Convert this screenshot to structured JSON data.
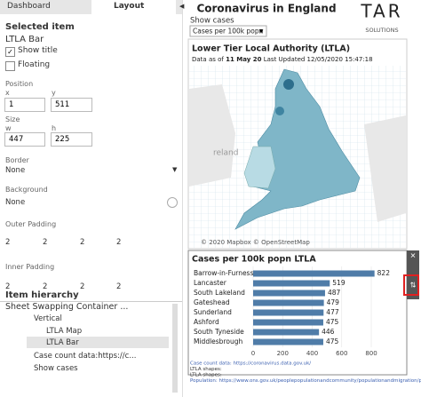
{
  "left_panel": {
    "tabs": [
      "Dashboard",
      "Layout"
    ],
    "selected_item_heading": "Selected item",
    "selected_item_name": "LTLA Bar",
    "show_title": "Show title",
    "floating": "Floating",
    "position": {
      "label": "Position",
      "x_label": "x",
      "y_label": "y",
      "x": 1,
      "y": 511
    },
    "size": {
      "label": "Size",
      "w_label": "w",
      "h_label": "h",
      "w": 447,
      "h": 225
    },
    "border": {
      "label": "Border",
      "value": "None"
    },
    "background": {
      "label": "Background",
      "value": "None"
    },
    "outer_padding": {
      "label": "Outer Padding",
      "values": [
        2,
        2,
        2,
        2
      ]
    },
    "inner_padding": {
      "label": "Inner Padding",
      "values": [
        2,
        2,
        2,
        2
      ]
    },
    "hierarchy": {
      "label": "Item hierarchy",
      "items": [
        "Sheet Swapping Container ...",
        "Vertical",
        "LTLA Map",
        "LTLA Bar",
        "Case count data:https://c...",
        "Show cases"
      ]
    }
  },
  "dashboard": {
    "title": "Coronavirus in England",
    "logo": "TAR",
    "logo_sub": "SOLUTIONS",
    "filter_label": "Show cases",
    "filter_value": "Cases per 100k popn",
    "map": {
      "title": "Lower Tier Local Authority (LTLA)",
      "subtitle_prefix": "Data as of",
      "subtitle_date": "11 May 20",
      "subtitle_suffix": "Last Updated 12/05/2020 15:47:18",
      "place_label": "reland",
      "attribution": "© 2020 Mapbox © OpenStreetMap"
    },
    "bar_chart": {
      "type": "bar",
      "title": "Cases per 100k popn LTLA",
      "categories": [
        "Barrow-in-Furness",
        "Lancaster",
        "South Lakeland",
        "Gateshead",
        "Sunderland",
        "Ashford",
        "South Tyneside",
        "Middlesbrough"
      ],
      "values": [
        822,
        519,
        487,
        479,
        477,
        475,
        446,
        475
      ],
      "color": "#4f7ca8",
      "xlim": [
        0,
        800
      ],
      "xticks": [
        0,
        200,
        400,
        600,
        800
      ]
    },
    "footer": [
      "Case count data: https://coronavirus.data.gov.uk/",
      "LTLA shapes:",
      "LTLA shapes:",
      "Population: https://www.ons.gov.uk/peoplepopulationandcommunity/populationandmigration/populationestimates/datasets/populationestimatesforukenglandandwalesscotlandandnorthernireland"
    ]
  }
}
